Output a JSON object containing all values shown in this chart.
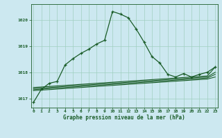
{
  "title": "Graphe pression niveau de la mer (hPa)",
  "background_color": "#cce8f0",
  "grid_color": "#a0cfc0",
  "line_color": "#1a5c28",
  "x_ticks": [
    0,
    1,
    2,
    3,
    4,
    5,
    6,
    7,
    8,
    9,
    10,
    11,
    12,
    13,
    14,
    15,
    16,
    17,
    18,
    19,
    20,
    21,
    22,
    23
  ],
  "y_ticks": [
    1017,
    1018,
    1019,
    1020
  ],
  "xlim": [
    -0.3,
    23.3
  ],
  "ylim": [
    1016.65,
    1020.6
  ],
  "main_line": [
    1016.85,
    1017.35,
    1017.58,
    1017.65,
    1018.28,
    1018.52,
    1018.72,
    1018.88,
    1019.08,
    1019.22,
    1020.32,
    1020.22,
    1020.08,
    1019.65,
    1019.15,
    1018.6,
    1018.35,
    1017.92,
    1017.82,
    1017.95,
    1017.82,
    1017.92,
    1018.0,
    1018.2
  ],
  "flat_line1": [
    1017.42,
    1017.44,
    1017.46,
    1017.48,
    1017.5,
    1017.52,
    1017.54,
    1017.56,
    1017.58,
    1017.6,
    1017.62,
    1017.64,
    1017.66,
    1017.68,
    1017.7,
    1017.72,
    1017.74,
    1017.76,
    1017.78,
    1017.8,
    1017.82,
    1017.84,
    1017.86,
    1018.2
  ],
  "flat_line2": [
    1017.38,
    1017.4,
    1017.42,
    1017.44,
    1017.46,
    1017.48,
    1017.5,
    1017.52,
    1017.54,
    1017.56,
    1017.58,
    1017.6,
    1017.62,
    1017.64,
    1017.66,
    1017.68,
    1017.7,
    1017.72,
    1017.74,
    1017.76,
    1017.78,
    1017.8,
    1017.82,
    1018.0
  ],
  "flat_line3": [
    1017.34,
    1017.36,
    1017.38,
    1017.4,
    1017.42,
    1017.44,
    1017.46,
    1017.48,
    1017.5,
    1017.52,
    1017.54,
    1017.56,
    1017.58,
    1017.6,
    1017.62,
    1017.64,
    1017.66,
    1017.68,
    1017.7,
    1017.72,
    1017.74,
    1017.76,
    1017.78,
    1017.92
  ],
  "flat_line4": [
    1017.3,
    1017.32,
    1017.34,
    1017.36,
    1017.38,
    1017.4,
    1017.42,
    1017.44,
    1017.46,
    1017.48,
    1017.5,
    1017.52,
    1017.54,
    1017.56,
    1017.58,
    1017.6,
    1017.62,
    1017.64,
    1017.66,
    1017.68,
    1017.7,
    1017.72,
    1017.74,
    1017.82
  ]
}
